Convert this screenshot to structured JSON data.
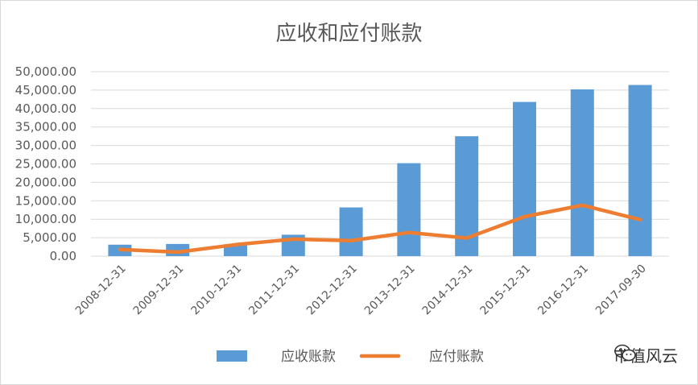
{
  "chart_data": {
    "type": "bar",
    "title": "应收和应付账款",
    "categories": [
      "2008-12-31",
      "2009-12-31",
      "2010-12-31",
      "2011-12-31",
      "2012-12-31",
      "2013-12-31",
      "2014-12-31",
      "2015-12-31",
      "2016-12-31",
      "2017-09-30"
    ],
    "y_tick_labels": [
      "0.00",
      "5,000.00",
      "10,000.00",
      "15,000.00",
      "20,000.00",
      "25,000.00",
      "30,000.00",
      "35,000.00",
      "40,000.00",
      "45,000.00",
      "50,000.00"
    ],
    "ylim": [
      0,
      50000
    ],
    "grid": true,
    "legend_position": "bottom",
    "series": [
      {
        "name": "应收账款",
        "type": "bar",
        "color": "#5B9BD5",
        "values": [
          3100,
          3300,
          3200,
          5800,
          13200,
          25200,
          32500,
          41800,
          45200,
          46400
        ]
      },
      {
        "name": "应付账款",
        "type": "line",
        "color": "#ED7D31",
        "values": [
          1800,
          1100,
          3100,
          4600,
          4200,
          6400,
          4900,
          10700,
          13800,
          9900
        ]
      }
    ]
  },
  "watermark": {
    "text": "市值风云",
    "icon": "wechat-icon"
  }
}
